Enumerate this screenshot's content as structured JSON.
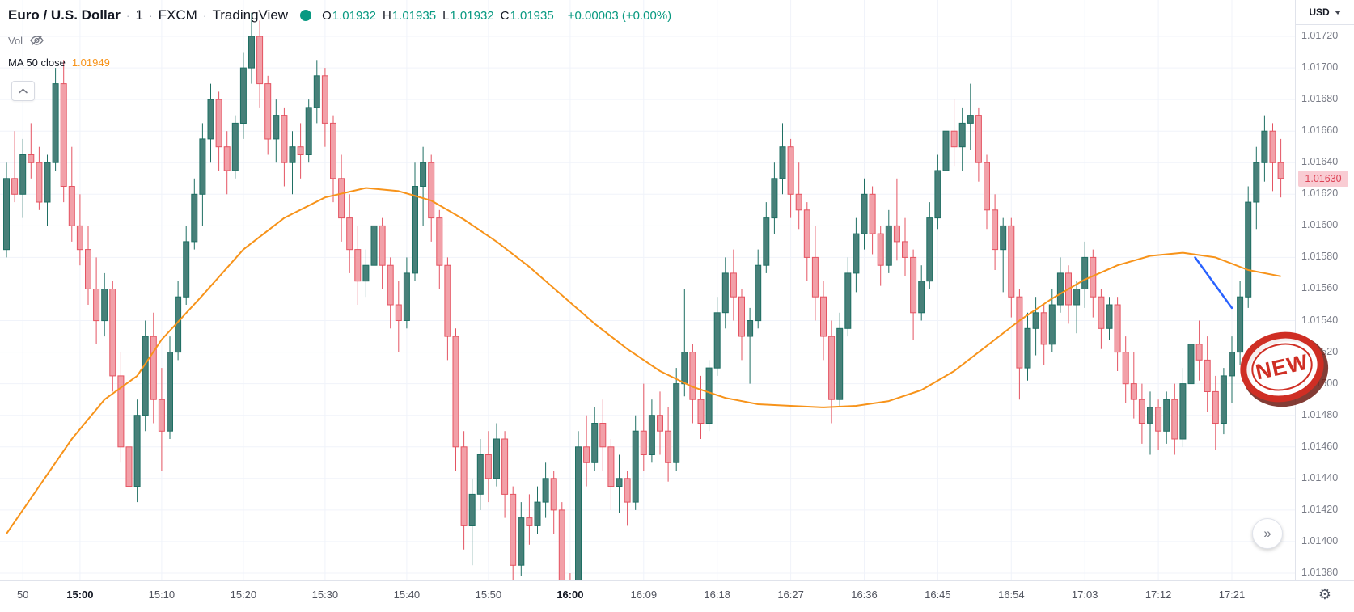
{
  "legend": {
    "symbol_title": "Euro / U.S. Dollar",
    "separator": "·",
    "interval": "1",
    "exchange": "FXCM",
    "platform": "TradingView",
    "ohlc_items": [
      {
        "label": "O",
        "value": "1.01932"
      },
      {
        "label": "H",
        "value": "1.01935"
      },
      {
        "label": "L",
        "value": "1.01932"
      },
      {
        "label": "C",
        "value": "1.01935"
      }
    ],
    "change_text": "+0.00003 (+0.00%)",
    "vol_label": "Vol",
    "ma_row": {
      "label": "MA 50 close",
      "value": "1.01949"
    }
  },
  "price_axis": {
    "currency_label": "USD",
    "ticks": [
      "1.01720",
      "1.01700",
      "1.01680",
      "1.01660",
      "1.01640",
      "1.01620",
      "1.01600",
      "1.01580",
      "1.01560",
      "1.01540",
      "1.01520",
      "1.01500",
      "1.01480",
      "1.01460",
      "1.01440",
      "1.01420",
      "1.01400",
      "1.01380"
    ],
    "last_price": "1.01630"
  },
  "time_axis": {
    "ticks": [
      {
        "label": "50",
        "i": 2,
        "bold": false
      },
      {
        "label": "15:00",
        "i": 9,
        "bold": true
      },
      {
        "label": "15:10",
        "i": 19,
        "bold": false
      },
      {
        "label": "15:20",
        "i": 29,
        "bold": false
      },
      {
        "label": "15:30",
        "i": 39,
        "bold": false
      },
      {
        "label": "15:40",
        "i": 49,
        "bold": false
      },
      {
        "label": "15:50",
        "i": 59,
        "bold": false
      },
      {
        "label": "16:00",
        "i": 69,
        "bold": true
      },
      {
        "label": "16:09",
        "i": 78,
        "bold": false
      },
      {
        "label": "16:18",
        "i": 87,
        "bold": false
      },
      {
        "label": "16:27",
        "i": 96,
        "bold": false
      },
      {
        "label": "16:36",
        "i": 105,
        "bold": false
      },
      {
        "label": "16:45",
        "i": 114,
        "bold": false
      },
      {
        "label": "16:54",
        "i": 123,
        "bold": false
      },
      {
        "label": "17:03",
        "i": 132,
        "bold": false
      },
      {
        "label": "17:12",
        "i": 141,
        "bold": false
      },
      {
        "label": "17:21",
        "i": 150,
        "bold": false
      }
    ]
  },
  "stamp": {
    "text": "NEW"
  },
  "icons": {
    "gear": "⚙",
    "scroll_right": "»"
  },
  "chart_data": {
    "type": "candlestick",
    "title": "Euro / U.S. Dollar",
    "symbol": "EUR/USD",
    "interval_minutes": 1,
    "exchange": "FXCM",
    "price_range": {
      "min": 1.0138,
      "max": 1.0172,
      "tick_step": 0.0002
    },
    "time_start": "14:51",
    "time_step_minutes": 1,
    "grid": true,
    "volume_hidden": true,
    "colors": {
      "up_body": "#478079",
      "up_border": "#1f6f63",
      "down_body": "#f2a0a8",
      "down_border": "#e45462",
      "grid": "#f0f3fa",
      "ma": "#f7931a",
      "trend": "#2962ff",
      "accent_green": "#089981",
      "last_price_bg": "#f9ccd3",
      "last_price_text": "#dd4356"
    },
    "candles": [
      [
        1.01585,
        1.0164,
        1.0158,
        1.0163
      ],
      [
        1.0163,
        1.0166,
        1.01615,
        1.0162
      ],
      [
        1.0162,
        1.01655,
        1.01605,
        1.01645
      ],
      [
        1.01645,
        1.01665,
        1.0163,
        1.0164
      ],
      [
        1.0164,
        1.0165,
        1.0161,
        1.01615
      ],
      [
        1.01615,
        1.01645,
        1.016,
        1.0164
      ],
      [
        1.0164,
        1.017,
        1.01635,
        1.0169
      ],
      [
        1.0169,
        1.01705,
        1.01615,
        1.01625
      ],
      [
        1.01625,
        1.0165,
        1.0159,
        1.016
      ],
      [
        1.016,
        1.0162,
        1.01575,
        1.01585
      ],
      [
        1.01585,
        1.016,
        1.0155,
        1.0156
      ],
      [
        1.0156,
        1.0158,
        1.01525,
        1.0154
      ],
      [
        1.0154,
        1.0157,
        1.0153,
        1.0156
      ],
      [
        1.0156,
        1.01565,
        1.01495,
        1.01505
      ],
      [
        1.01505,
        1.0152,
        1.0145,
        1.0146
      ],
      [
        1.0146,
        1.0148,
        1.0142,
        1.01435
      ],
      [
        1.01435,
        1.0149,
        1.01425,
        1.0148
      ],
      [
        1.0148,
        1.0154,
        1.0147,
        1.0153
      ],
      [
        1.0153,
        1.01545,
        1.01475,
        1.0149
      ],
      [
        1.0149,
        1.0151,
        1.01445,
        1.0147
      ],
      [
        1.0147,
        1.0153,
        1.01465,
        1.0152
      ],
      [
        1.0152,
        1.01565,
        1.01515,
        1.01555
      ],
      [
        1.01555,
        1.016,
        1.0155,
        1.0159
      ],
      [
        1.0159,
        1.0163,
        1.01585,
        1.0162
      ],
      [
        1.0162,
        1.01665,
        1.016,
        1.01655
      ],
      [
        1.01655,
        1.0169,
        1.0164,
        1.0168
      ],
      [
        1.0168,
        1.01685,
        1.01635,
        1.0165
      ],
      [
        1.0165,
        1.0166,
        1.0162,
        1.01635
      ],
      [
        1.01635,
        1.0167,
        1.0163,
        1.01665
      ],
      [
        1.01665,
        1.0171,
        1.01655,
        1.017
      ],
      [
        1.017,
        1.01735,
        1.0169,
        1.0172
      ],
      [
        1.0172,
        1.0173,
        1.01675,
        1.0169
      ],
      [
        1.0169,
        1.01695,
        1.01645,
        1.01655
      ],
      [
        1.01655,
        1.0168,
        1.0164,
        1.0167
      ],
      [
        1.0167,
        1.01675,
        1.01625,
        1.0164
      ],
      [
        1.0164,
        1.0166,
        1.0162,
        1.0165
      ],
      [
        1.0165,
        1.01665,
        1.0163,
        1.01645
      ],
      [
        1.01645,
        1.0168,
        1.0164,
        1.01675
      ],
      [
        1.01675,
        1.01705,
        1.01665,
        1.01695
      ],
      [
        1.01695,
        1.017,
        1.0165,
        1.01665
      ],
      [
        1.01665,
        1.0167,
        1.01615,
        1.0163
      ],
      [
        1.0163,
        1.01645,
        1.0159,
        1.01605
      ],
      [
        1.01605,
        1.0162,
        1.0157,
        1.01585
      ],
      [
        1.01585,
        1.016,
        1.0155,
        1.01565
      ],
      [
        1.01565,
        1.01585,
        1.01555,
        1.01575
      ],
      [
        1.01575,
        1.01605,
        1.0157,
        1.016
      ],
      [
        1.016,
        1.01605,
        1.0156,
        1.01575
      ],
      [
        1.01575,
        1.0158,
        1.01535,
        1.0155
      ],
      [
        1.0155,
        1.01565,
        1.0152,
        1.0154
      ],
      [
        1.0154,
        1.0158,
        1.01535,
        1.0157
      ],
      [
        1.0157,
        1.0164,
        1.01565,
        1.01625
      ],
      [
        1.01625,
        1.0165,
        1.016,
        1.0164
      ],
      [
        1.0164,
        1.01645,
        1.0159,
        1.01605
      ],
      [
        1.01605,
        1.0161,
        1.0156,
        1.01575
      ],
      [
        1.01575,
        1.0158,
        1.01515,
        1.0153
      ],
      [
        1.0153,
        1.01535,
        1.01445,
        1.0146
      ],
      [
        1.0146,
        1.0147,
        1.01395,
        1.0141
      ],
      [
        1.0141,
        1.0144,
        1.01385,
        1.0143
      ],
      [
        1.0143,
        1.01465,
        1.0142,
        1.01455
      ],
      [
        1.01455,
        1.0147,
        1.01425,
        1.0144
      ],
      [
        1.0144,
        1.01475,
        1.01435,
        1.01465
      ],
      [
        1.01465,
        1.0147,
        1.01415,
        1.0143
      ],
      [
        1.0143,
        1.01435,
        1.0137,
        1.01385
      ],
      [
        1.01385,
        1.01425,
        1.01378,
        1.01415
      ],
      [
        1.01415,
        1.0143,
        1.01398,
        1.0141
      ],
      [
        1.0141,
        1.01435,
        1.01405,
        1.01425
      ],
      [
        1.01425,
        1.0145,
        1.01415,
        1.0144
      ],
      [
        1.0144,
        1.01445,
        1.01405,
        1.0142
      ],
      [
        1.0142,
        1.01425,
        1.0136,
        1.0137
      ],
      [
        1.0137,
        1.0138,
        1.0135,
        1.0136
      ],
      [
        1.0136,
        1.0147,
        1.01355,
        1.0146
      ],
      [
        1.0146,
        1.0148,
        1.01435,
        1.0145
      ],
      [
        1.0145,
        1.01485,
        1.01445,
        1.01475
      ],
      [
        1.01475,
        1.0149,
        1.01445,
        1.0146
      ],
      [
        1.0146,
        1.01465,
        1.0142,
        1.01435
      ],
      [
        1.01435,
        1.01455,
        1.01418,
        1.0144
      ],
      [
        1.0144,
        1.01445,
        1.0141,
        1.01425
      ],
      [
        1.01425,
        1.0148,
        1.0142,
        1.0147
      ],
      [
        1.0147,
        1.015,
        1.01445,
        1.01455
      ],
      [
        1.01455,
        1.0149,
        1.0145,
        1.0148
      ],
      [
        1.0148,
        1.01495,
        1.01455,
        1.0147
      ],
      [
        1.0147,
        1.01485,
        1.01438,
        1.0145
      ],
      [
        1.0145,
        1.0151,
        1.01445,
        1.015
      ],
      [
        1.015,
        1.0156,
        1.01492,
        1.0152
      ],
      [
        1.0152,
        1.01525,
        1.01475,
        1.0149
      ],
      [
        1.0149,
        1.01505,
        1.01465,
        1.01475
      ],
      [
        1.01475,
        1.01515,
        1.0147,
        1.0151
      ],
      [
        1.0151,
        1.01555,
        1.01505,
        1.01545
      ],
      [
        1.01545,
        1.0158,
        1.01535,
        1.0157
      ],
      [
        1.0157,
        1.01585,
        1.0154,
        1.01555
      ],
      [
        1.01555,
        1.0156,
        1.01515,
        1.0153
      ],
      [
        1.0153,
        1.01548,
        1.015,
        1.0154
      ],
      [
        1.0154,
        1.01585,
        1.01535,
        1.01575
      ],
      [
        1.01575,
        1.01615,
        1.0157,
        1.01605
      ],
      [
        1.01605,
        1.0164,
        1.01595,
        1.0163
      ],
      [
        1.0163,
        1.01665,
        1.0162,
        1.0165
      ],
      [
        1.0165,
        1.01655,
        1.01605,
        1.0162
      ],
      [
        1.0162,
        1.0164,
        1.01598,
        1.0161
      ],
      [
        1.0161,
        1.01615,
        1.01565,
        1.0158
      ],
      [
        1.0158,
        1.016,
        1.0154,
        1.01555
      ],
      [
        1.01555,
        1.01565,
        1.01515,
        1.0153
      ],
      [
        1.0153,
        1.0154,
        1.01475,
        1.0149
      ],
      [
        1.0149,
        1.01545,
        1.01485,
        1.01535
      ],
      [
        1.01535,
        1.0158,
        1.0153,
        1.0157
      ],
      [
        1.0157,
        1.01605,
        1.01558,
        1.01595
      ],
      [
        1.01595,
        1.0163,
        1.01585,
        1.0162
      ],
      [
        1.0162,
        1.01625,
        1.01582,
        1.01595
      ],
      [
        1.01595,
        1.016,
        1.01562,
        1.01575
      ],
      [
        1.01575,
        1.0161,
        1.0157,
        1.016
      ],
      [
        1.016,
        1.0163,
        1.01578,
        1.0159
      ],
      [
        1.0159,
        1.01605,
        1.01568,
        1.0158
      ],
      [
        1.0158,
        1.01585,
        1.01528,
        1.01545
      ],
      [
        1.01545,
        1.01575,
        1.0154,
        1.01565
      ],
      [
        1.01565,
        1.01615,
        1.0156,
        1.01605
      ],
      [
        1.01605,
        1.01645,
        1.01598,
        1.01635
      ],
      [
        1.01635,
        1.0167,
        1.01625,
        1.0166
      ],
      [
        1.0166,
        1.0168,
        1.01638,
        1.0165
      ],
      [
        1.0165,
        1.01675,
        1.01635,
        1.01665
      ],
      [
        1.01665,
        1.0169,
        1.01648,
        1.0167
      ],
      [
        1.0167,
        1.01675,
        1.01628,
        1.0164
      ],
      [
        1.0164,
        1.01645,
        1.01598,
        1.0161
      ],
      [
        1.0161,
        1.0162,
        1.01572,
        1.01585
      ],
      [
        1.01585,
        1.01605,
        1.01558,
        1.016
      ],
      [
        1.016,
        1.01605,
        1.01542,
        1.01555
      ],
      [
        1.01555,
        1.0156,
        1.0149,
        1.0151
      ],
      [
        1.0151,
        1.01545,
        1.01502,
        1.01535
      ],
      [
        1.01535,
        1.01555,
        1.01518,
        1.01545
      ],
      [
        1.01545,
        1.0155,
        1.01512,
        1.01525
      ],
      [
        1.01525,
        1.0156,
        1.0152,
        1.0155
      ],
      [
        1.0155,
        1.0158,
        1.01545,
        1.0157
      ],
      [
        1.0157,
        1.01575,
        1.01538,
        1.0155
      ],
      [
        1.0155,
        1.01565,
        1.01532,
        1.0156
      ],
      [
        1.0156,
        1.0159,
        1.01548,
        1.0158
      ],
      [
        1.0158,
        1.01585,
        1.01542,
        1.01555
      ],
      [
        1.01555,
        1.0156,
        1.01522,
        1.01535
      ],
      [
        1.01535,
        1.01555,
        1.01528,
        1.0155
      ],
      [
        1.0155,
        1.01555,
        1.01508,
        1.0152
      ],
      [
        1.0152,
        1.0153,
        1.01488,
        1.015
      ],
      [
        1.015,
        1.0152,
        1.01478,
        1.0149
      ],
      [
        1.0149,
        1.015,
        1.01462,
        1.01475
      ],
      [
        1.01475,
        1.01495,
        1.01455,
        1.01485
      ],
      [
        1.01485,
        1.0149,
        1.01458,
        1.0147
      ],
      [
        1.0147,
        1.01495,
        1.01462,
        1.0149
      ],
      [
        1.0149,
        1.015,
        1.01455,
        1.01465
      ],
      [
        1.01465,
        1.0151,
        1.0146,
        1.015
      ],
      [
        1.015,
        1.01535,
        1.01495,
        1.01525
      ],
      [
        1.01525,
        1.0154,
        1.01502,
        1.01515
      ],
      [
        1.01515,
        1.0153,
        1.01482,
        1.01495
      ],
      [
        1.01495,
        1.01505,
        1.01458,
        1.01475
      ],
      [
        1.01475,
        1.0151,
        1.01468,
        1.01505
      ],
      [
        1.01505,
        1.0153,
        1.01488,
        1.0152
      ],
      [
        1.0152,
        1.01565,
        1.01512,
        1.01555
      ],
      [
        1.01555,
        1.01625,
        1.01548,
        1.01615
      ],
      [
        1.01615,
        1.0165,
        1.01598,
        1.0164
      ],
      [
        1.0164,
        1.0167,
        1.01628,
        1.0166
      ],
      [
        1.0166,
        1.01665,
        1.01622,
        1.0164
      ],
      [
        1.0164,
        1.01655,
        1.01618,
        1.0163
      ]
    ],
    "overlays": {
      "ma50": {
        "name": "MA 50 close",
        "color": "#f7931a",
        "points": [
          [
            0,
            1.01405
          ],
          [
            4,
            1.01435
          ],
          [
            8,
            1.01465
          ],
          [
            12,
            1.0149
          ],
          [
            16,
            1.01505
          ],
          [
            19,
            1.01528
          ],
          [
            24,
            1.01556
          ],
          [
            29,
            1.01585
          ],
          [
            34,
            1.01605
          ],
          [
            39,
            1.01618
          ],
          [
            44,
            1.01624
          ],
          [
            48,
            1.01622
          ],
          [
            52,
            1.01616
          ],
          [
            56,
            1.01604
          ],
          [
            60,
            1.0159
          ],
          [
            64,
            1.01574
          ],
          [
            68,
            1.01556
          ],
          [
            72,
            1.01538
          ],
          [
            76,
            1.01522
          ],
          [
            80,
            1.01508
          ],
          [
            84,
            1.01498
          ],
          [
            88,
            1.01491
          ],
          [
            92,
            1.01487
          ],
          [
            96,
            1.01486
          ],
          [
            100,
            1.01485
          ],
          [
            104,
            1.01486
          ],
          [
            108,
            1.01489
          ],
          [
            112,
            1.01496
          ],
          [
            116,
            1.01508
          ],
          [
            120,
            1.01524
          ],
          [
            124,
            1.0154
          ],
          [
            128,
            1.01554
          ],
          [
            132,
            1.01566
          ],
          [
            136,
            1.01575
          ],
          [
            140,
            1.01581
          ],
          [
            144,
            1.01583
          ],
          [
            148,
            1.0158
          ],
          [
            152,
            1.01572
          ],
          [
            156,
            1.01568
          ]
        ]
      },
      "trendline": {
        "color": "#2962ff",
        "from": {
          "i": 145.5,
          "price": 1.0158
        },
        "to": {
          "i": 150,
          "price": 1.01548
        }
      }
    }
  }
}
